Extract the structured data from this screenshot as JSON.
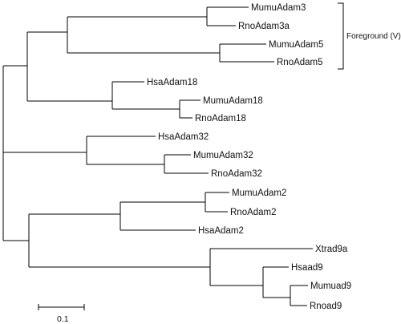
{
  "tree": {
    "tips": [
      "MumuAdam3",
      "RnoAdam3a",
      "MumuAdam5",
      "RnoAdam5",
      "HsaAdam18",
      "MumuAdam18",
      "RnoAdam18",
      "HsaAdam32",
      "MumuAdam32",
      "RnoAdam32",
      "MumuAdam2",
      "RnoAdam2",
      "HsaAdam2",
      "Xtrad9a",
      "Hsaad9",
      "Mumuad9",
      "Rnoad9"
    ],
    "foreground_label": "Foreground (V)",
    "scale_bar_label": "0.1"
  }
}
